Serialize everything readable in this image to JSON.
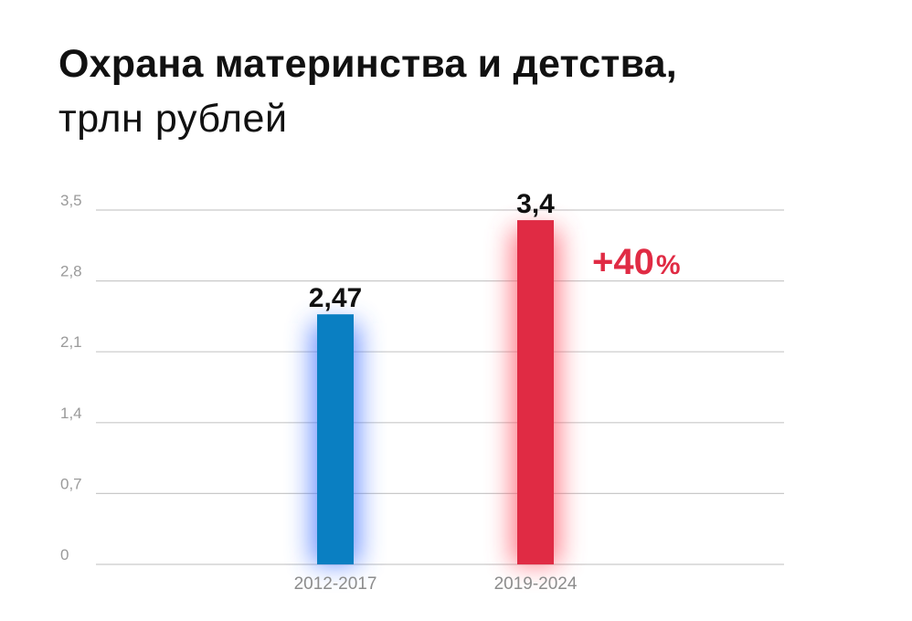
{
  "chart_data": {
    "type": "bar",
    "title": "Охрана материнства и детства,",
    "subtitle": "трлн рублей",
    "categories": [
      "2012-2017",
      "2019-2024"
    ],
    "values": [
      2.47,
      3.4
    ],
    "value_labels": [
      "2,47",
      "3,4"
    ],
    "bar_colors": [
      "#0a7fc2",
      "#e02b44"
    ],
    "glow_colors": [
      "#3b6dff",
      "#ff4d5e"
    ],
    "yticks": [
      0,
      0.7,
      1.4,
      2.1,
      2.8,
      3.5
    ],
    "ytick_labels": [
      "0",
      "0,7",
      "1,4",
      "2,1",
      "2,8",
      "3,5"
    ],
    "ylim": [
      0,
      3.5
    ],
    "grid": true,
    "annotation": {
      "number": "+40",
      "unit": "%",
      "color": "#e02b44"
    }
  }
}
